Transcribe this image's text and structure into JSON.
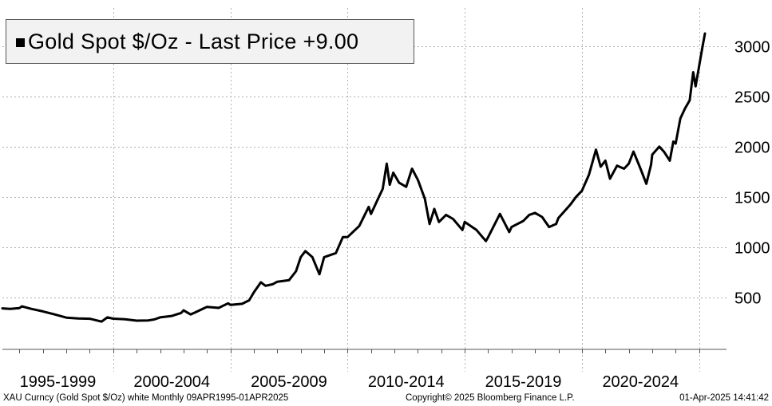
{
  "legend": {
    "label": "Gold Spot $/Oz - Last Price  +9.00"
  },
  "footer": {
    "left": "XAU Curncy (Gold Spot  $/Oz) white  Monthly 09APR1995-01APR2025",
    "center": "Copyright© 2025 Bloomberg Finance L.P.",
    "right": "01-Apr-2025 14:41:42"
  },
  "colors": {
    "line": "#000000",
    "grid": "#b0b0b0",
    "legend_bg": "#f2f2f2"
  },
  "chart_data": {
    "type": "line",
    "title": "",
    "xlabel": "",
    "ylabel": "",
    "x_range": [
      1995.27,
      2025.25
    ],
    "ylim": [
      -10,
      3300
    ],
    "y_ticks": [
      500,
      1000,
      1500,
      2000,
      2500,
      3000
    ],
    "x_groups": [
      "1995-1999",
      "2000-2004",
      "2005-2009",
      "2010-2014",
      "2015-2019",
      "2020-2024"
    ],
    "grid": true,
    "legend_position": "top-left",
    "series": [
      {
        "name": "Gold Spot $/Oz - Last Price",
        "points": [
          [
            1995.27,
            390
          ],
          [
            1995.6,
            385
          ],
          [
            1996.0,
            393
          ],
          [
            1996.1,
            410
          ],
          [
            1996.5,
            385
          ],
          [
            1997.0,
            360
          ],
          [
            1997.5,
            330
          ],
          [
            1998.0,
            298
          ],
          [
            1998.5,
            290
          ],
          [
            1999.0,
            287
          ],
          [
            1999.5,
            258
          ],
          [
            1999.75,
            300
          ],
          [
            2000.0,
            288
          ],
          [
            2000.5,
            282
          ],
          [
            2001.0,
            268
          ],
          [
            2001.5,
            270
          ],
          [
            2001.75,
            280
          ],
          [
            2002.0,
            300
          ],
          [
            2002.5,
            315
          ],
          [
            2002.9,
            345
          ],
          [
            2003.0,
            370
          ],
          [
            2003.3,
            330
          ],
          [
            2003.5,
            350
          ],
          [
            2004.0,
            405
          ],
          [
            2004.5,
            395
          ],
          [
            2004.9,
            440
          ],
          [
            2005.0,
            425
          ],
          [
            2005.5,
            435
          ],
          [
            2005.8,
            470
          ],
          [
            2006.0,
            550
          ],
          [
            2006.3,
            650
          ],
          [
            2006.5,
            615
          ],
          [
            2006.8,
            630
          ],
          [
            2007.0,
            655
          ],
          [
            2007.5,
            670
          ],
          [
            2007.8,
            760
          ],
          [
            2008.0,
            900
          ],
          [
            2008.2,
            960
          ],
          [
            2008.5,
            900
          ],
          [
            2008.8,
            730
          ],
          [
            2009.0,
            900
          ],
          [
            2009.5,
            940
          ],
          [
            2009.8,
            1100
          ],
          [
            2010.0,
            1100
          ],
          [
            2010.5,
            1210
          ],
          [
            2010.9,
            1400
          ],
          [
            2011.0,
            1330
          ],
          [
            2011.3,
            1480
          ],
          [
            2011.5,
            1580
          ],
          [
            2011.67,
            1830
          ],
          [
            2011.8,
            1620
          ],
          [
            2011.95,
            1740
          ],
          [
            2012.2,
            1640
          ],
          [
            2012.5,
            1600
          ],
          [
            2012.75,
            1780
          ],
          [
            2013.0,
            1670
          ],
          [
            2013.3,
            1480
          ],
          [
            2013.5,
            1230
          ],
          [
            2013.7,
            1380
          ],
          [
            2013.9,
            1250
          ],
          [
            2014.2,
            1320
          ],
          [
            2014.5,
            1280
          ],
          [
            2014.9,
            1170
          ],
          [
            2015.0,
            1250
          ],
          [
            2015.5,
            1170
          ],
          [
            2015.9,
            1060
          ],
          [
            2016.0,
            1100
          ],
          [
            2016.5,
            1330
          ],
          [
            2016.9,
            1150
          ],
          [
            2017.0,
            1200
          ],
          [
            2017.5,
            1260
          ],
          [
            2017.75,
            1320
          ],
          [
            2018.0,
            1340
          ],
          [
            2018.3,
            1300
          ],
          [
            2018.6,
            1200
          ],
          [
            2018.9,
            1230
          ],
          [
            2019.0,
            1290
          ],
          [
            2019.5,
            1420
          ],
          [
            2019.75,
            1500
          ],
          [
            2020.0,
            1560
          ],
          [
            2020.3,
            1720
          ],
          [
            2020.6,
            1970
          ],
          [
            2020.8,
            1800
          ],
          [
            2021.0,
            1860
          ],
          [
            2021.2,
            1680
          ],
          [
            2021.5,
            1810
          ],
          [
            2021.8,
            1780
          ],
          [
            2022.0,
            1830
          ],
          [
            2022.2,
            1950
          ],
          [
            2022.5,
            1780
          ],
          [
            2022.75,
            1630
          ],
          [
            2022.95,
            1820
          ],
          [
            2023.0,
            1920
          ],
          [
            2023.3,
            2000
          ],
          [
            2023.5,
            1950
          ],
          [
            2023.75,
            1860
          ],
          [
            2023.9,
            2050
          ],
          [
            2024.0,
            2030
          ],
          [
            2024.2,
            2280
          ],
          [
            2024.4,
            2380
          ],
          [
            2024.6,
            2460
          ],
          [
            2024.75,
            2740
          ],
          [
            2024.85,
            2600
          ],
          [
            2025.0,
            2800
          ],
          [
            2025.15,
            3000
          ],
          [
            2025.25,
            3125
          ]
        ]
      }
    ]
  }
}
